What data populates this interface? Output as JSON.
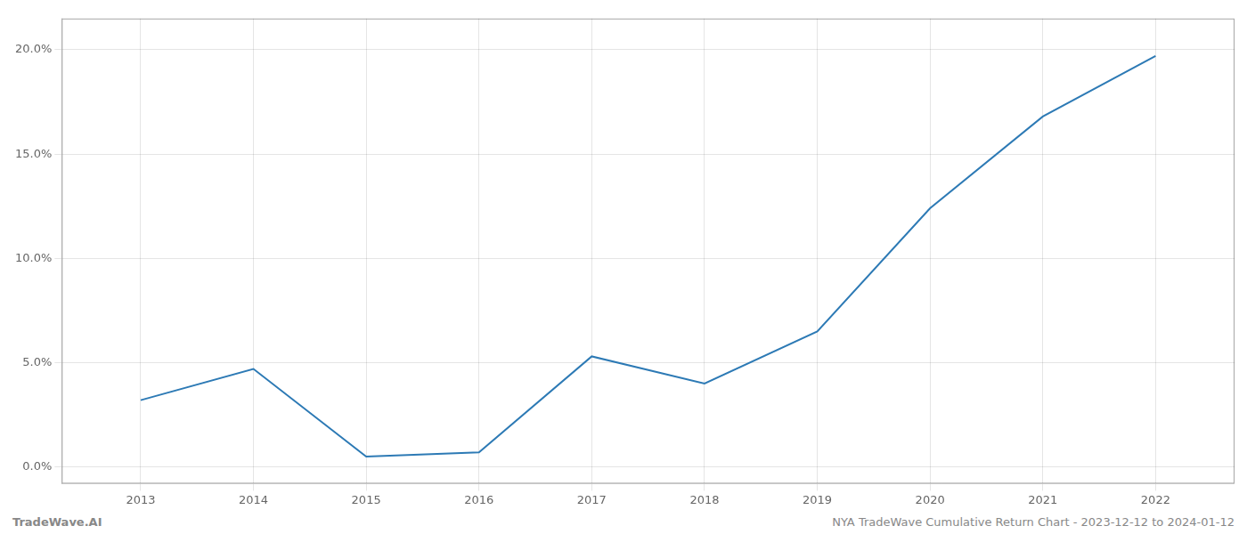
{
  "chart_data": {
    "type": "line",
    "x": [
      2013,
      2014,
      2015,
      2016,
      2017,
      2018,
      2019,
      2020,
      2021,
      2022
    ],
    "values": [
      0.032,
      0.047,
      0.005,
      0.007,
      0.053,
      0.04,
      0.065,
      0.124,
      0.168,
      0.197
    ],
    "color": "#2d7ab5",
    "marker": "none",
    "xlim": [
      2012.3,
      2022.7
    ],
    "ylim": [
      -0.008,
      0.215
    ],
    "xticks": [
      2013,
      2014,
      2015,
      2016,
      2017,
      2018,
      2019,
      2020,
      2021,
      2022
    ],
    "yticks": [
      {
        "value": 0.0,
        "label": "0.0%"
      },
      {
        "value": 0.05,
        "label": "5.0%"
      },
      {
        "value": 0.1,
        "label": "10.0%"
      },
      {
        "value": 0.15,
        "label": "15.0%"
      },
      {
        "value": 0.2,
        "label": "20.0%"
      }
    ],
    "grid": true,
    "annotations": [
      "TradeWave.AI",
      "NYA TradeWave Cumulative Return Chart - 2023-12-12 to 2024-01-12"
    ]
  }
}
